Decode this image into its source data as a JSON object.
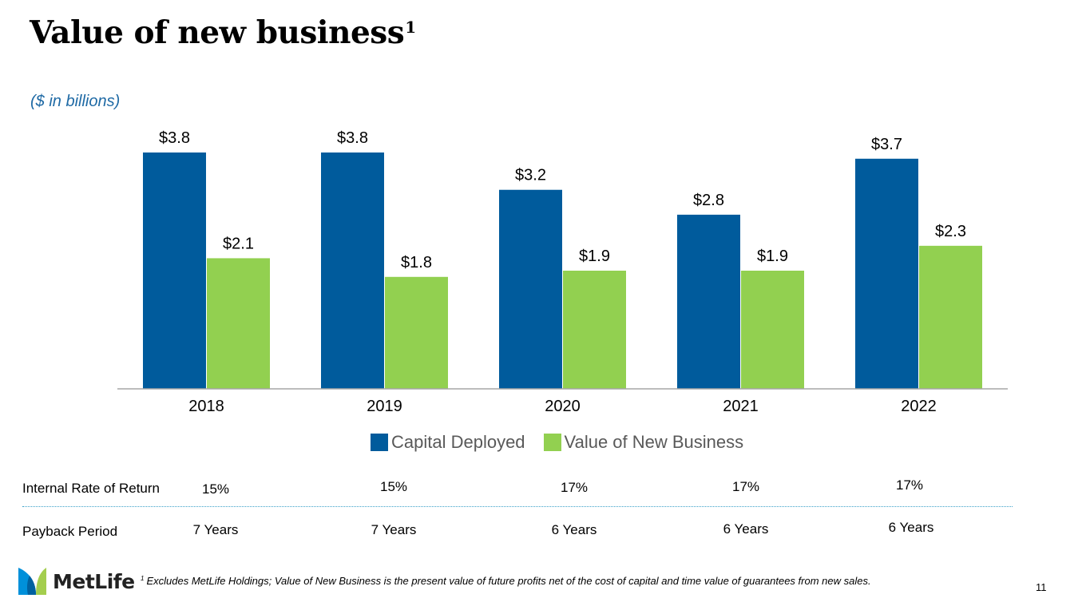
{
  "header": {
    "title": "Value of new business",
    "title_footnote_mark": "1",
    "subtitle": "($ in billions)"
  },
  "chart_data": {
    "type": "bar",
    "title": "Value of new business",
    "subtitle": "($ in billions)",
    "categories": [
      "2018",
      "2019",
      "2020",
      "2021",
      "2022"
    ],
    "series": [
      {
        "name": "Capital Deployed",
        "color": "#005b9c",
        "values": [
          3.8,
          3.8,
          3.2,
          2.8,
          3.7
        ],
        "labels": [
          "$3.8",
          "$3.8",
          "$3.2",
          "$2.8",
          "$3.7"
        ]
      },
      {
        "name": "Value of New Business",
        "color": "#92d050",
        "values": [
          2.1,
          1.8,
          1.9,
          1.9,
          2.3
        ],
        "labels": [
          "$2.1",
          "$1.8",
          "$1.9",
          "$1.9",
          "$2.3"
        ]
      }
    ],
    "xlabel": "",
    "ylabel": "",
    "ylim": [
      0,
      3.8
    ],
    "grid": false,
    "legend_position": "bottom-center"
  },
  "metrics": {
    "irr": {
      "label": "Internal Rate of Return",
      "values": [
        "15%",
        "15%",
        "17%",
        "17%",
        "17%"
      ]
    },
    "payback": {
      "label": "Payback Period",
      "values": [
        "7 Years",
        "7 Years",
        "6 Years",
        "6 Years",
        "6 Years"
      ]
    }
  },
  "footer": {
    "footnote_mark": "1",
    "footnote": "Excludes MetLife Holdings; Value of New Business is the present value of future profits net of the cost of capital and time value of guarantees from new sales.",
    "page_number": "11",
    "logo_text": "MetLife",
    "logo_colors": {
      "blue": "#0090da",
      "dark_blue": "#0061a0",
      "green": "#a4ce4e"
    }
  }
}
